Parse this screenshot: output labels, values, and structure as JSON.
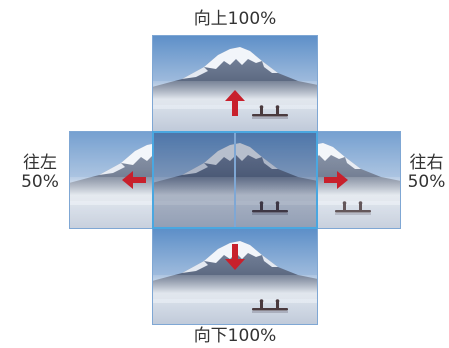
{
  "labels": {
    "top": "向上100%",
    "bottom": "向下100%",
    "left_line1": "往左",
    "left_line2": "50%",
    "right_line1": "往右",
    "right_line2": "50%"
  },
  "colors": {
    "arrow": "#c8202c",
    "frame": "#7fa7d4",
    "frame_center": "#4aa7e0",
    "sky_top": "#5d8fc8",
    "sky_bottom": "#c9d8ea",
    "mountain": "#6a7b96",
    "snow": "#f2f5fa",
    "fog": "#dfe6ef"
  },
  "icons": {
    "up": "arrow-up-icon",
    "down": "arrow-down-icon",
    "left": "arrow-left-icon",
    "right": "arrow-right-icon"
  }
}
